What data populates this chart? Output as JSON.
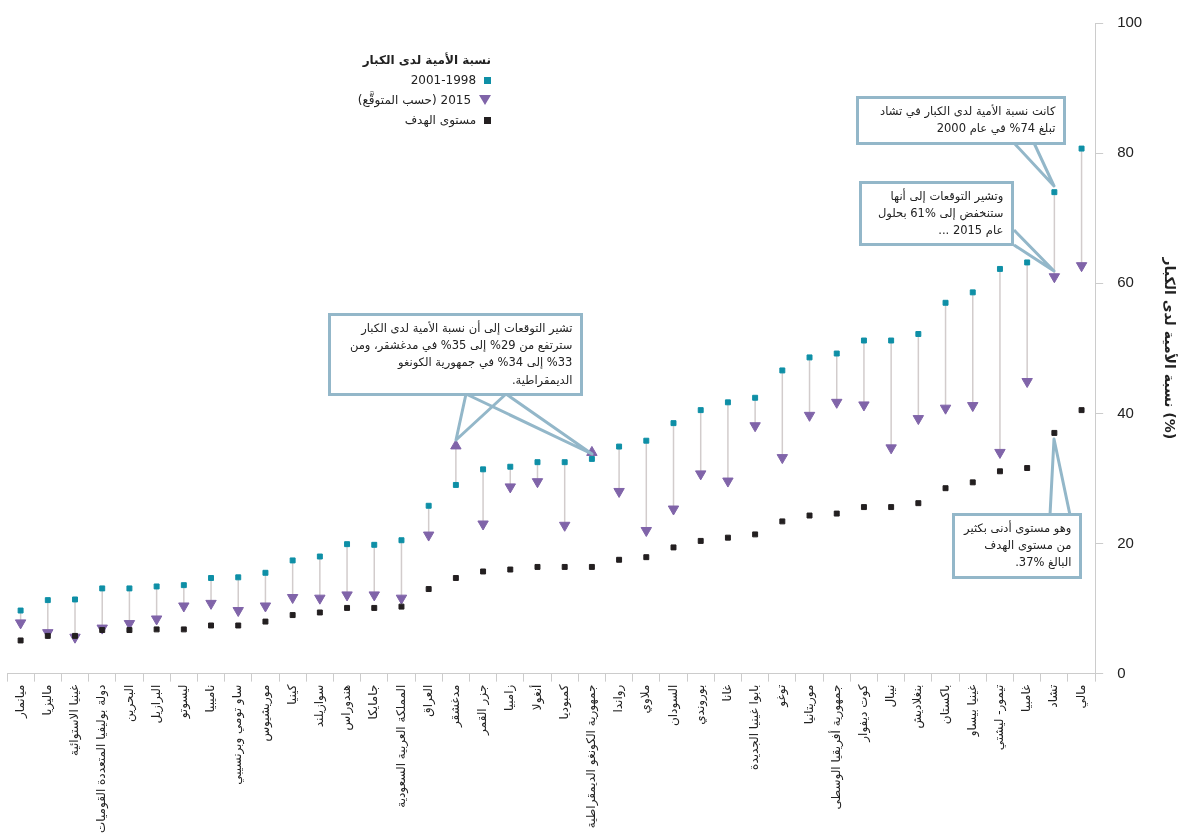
{
  "chart_data": {
    "type": "scatter",
    "categories": [
      "ميانمار",
      "ماليزيا",
      "غينيا الاستوائية",
      "دولة بوليفيا المتعددة القوميات",
      "البحرين",
      "البرازيل",
      "ليسوتو",
      "ناميبيا",
      "ساو تومي وبرنسيبي",
      "موريشيوس",
      "كينيا",
      "سوازيلند",
      "هندوراس",
      "جامايكا",
      "المملكة العربية السعودية",
      "العراق",
      "مدغشقر",
      "جزر القمر",
      "زامبيا",
      "أنغولا",
      "كمبوديا",
      "جمهورية الكونغو الديمقراطية",
      "رواندا",
      "ملاوي",
      "السودان",
      "بوروندي",
      "غانا",
      "بابوا غينيا الجديدة",
      "توغو",
      "موريتانيا",
      "جمهورية أفريقيا الوسطى",
      "كوت ديفوار",
      "نيبال",
      "بنغلاديش",
      "باكستان",
      "غينيا بيساو",
      "تيمور- ليشتي",
      "غامبيا",
      "تشاد",
      "مالي"
    ],
    "series": [
      {
        "name": "2001-1998",
        "color": "#0e8fa6",
        "marker": "square",
        "values": [
          9.7,
          11.3,
          11.4,
          13.1,
          13.1,
          13.4,
          13.6,
          14.7,
          14.8,
          15.5,
          17.4,
          18.0,
          19.9,
          19.8,
          20.5,
          25.8,
          29,
          31.4,
          31.8,
          32.5,
          32.5,
          33,
          34.9,
          35.8,
          38.5,
          40.5,
          41.7,
          42.4,
          46.6,
          48.6,
          49.2,
          51.2,
          51.2,
          52.2,
          57.0,
          58.6,
          62.2,
          63.2,
          74,
          80.7
        ]
      },
      {
        "name": "2015 (حسب المتوقَّع)",
        "color": "#8064a9",
        "marker": "triangle",
        "values": [
          7.8,
          6.3,
          5.6,
          7.0,
          7.7,
          8.4,
          10.4,
          10.8,
          9.7,
          10.4,
          11.7,
          11.6,
          12.1,
          12.1,
          11.6,
          21.3,
          35,
          23.0,
          28.7,
          29.5,
          22.8,
          34,
          28.0,
          22.0,
          25.3,
          30.7,
          29.6,
          38.1,
          33.2,
          39.7,
          41.7,
          41.3,
          34.7,
          39.2,
          40.8,
          41.2,
          34.0,
          44.9,
          61,
          62.7
        ]
      },
      {
        "name": "مستوى الهدف",
        "color": "#231f20",
        "marker": "square",
        "values": [
          5.1,
          5.8,
          5.8,
          6.7,
          6.7,
          6.8,
          6.8,
          7.4,
          7.4,
          8.0,
          9.0,
          9.4,
          10.1,
          10.1,
          10.3,
          13.0,
          14.7,
          15.7,
          16.0,
          16.4,
          16.4,
          16.4,
          17.5,
          17.9,
          19.4,
          20.4,
          20.9,
          21.4,
          23.4,
          24.3,
          24.6,
          25.6,
          25.6,
          26.2,
          28.5,
          29.4,
          31.1,
          31.6,
          37,
          40.5
        ]
      }
    ],
    "ylabel": "نسبة الأمية لدى الكبار (%)",
    "legend_title": "نسبة الأمية لدى الكبار",
    "legend": "top",
    "grid": false,
    "ylim": [
      0,
      100
    ],
    "yticks": [
      0,
      20,
      40,
      60,
      80,
      100
    ],
    "annotations": [
      "كانت نسبة الأمية لدى الكبار في تشاد تبلغ 74% في عام 2000",
      "وتشير التوقعات إلى أنها ستنخفض إلى %61 بحلول عام 2015 ...",
      "تشير التوقعات إلى أن نسبة الأمية لدى الكبار سترتفع من 29% إلى 35% في مدغشقر، ومن 33% إلى 34% في جمهورية الكونغو الديمقراطية.",
      "وهو مستوى أدنى بكثير من مستوى الهدف البالغ %37."
    ]
  }
}
